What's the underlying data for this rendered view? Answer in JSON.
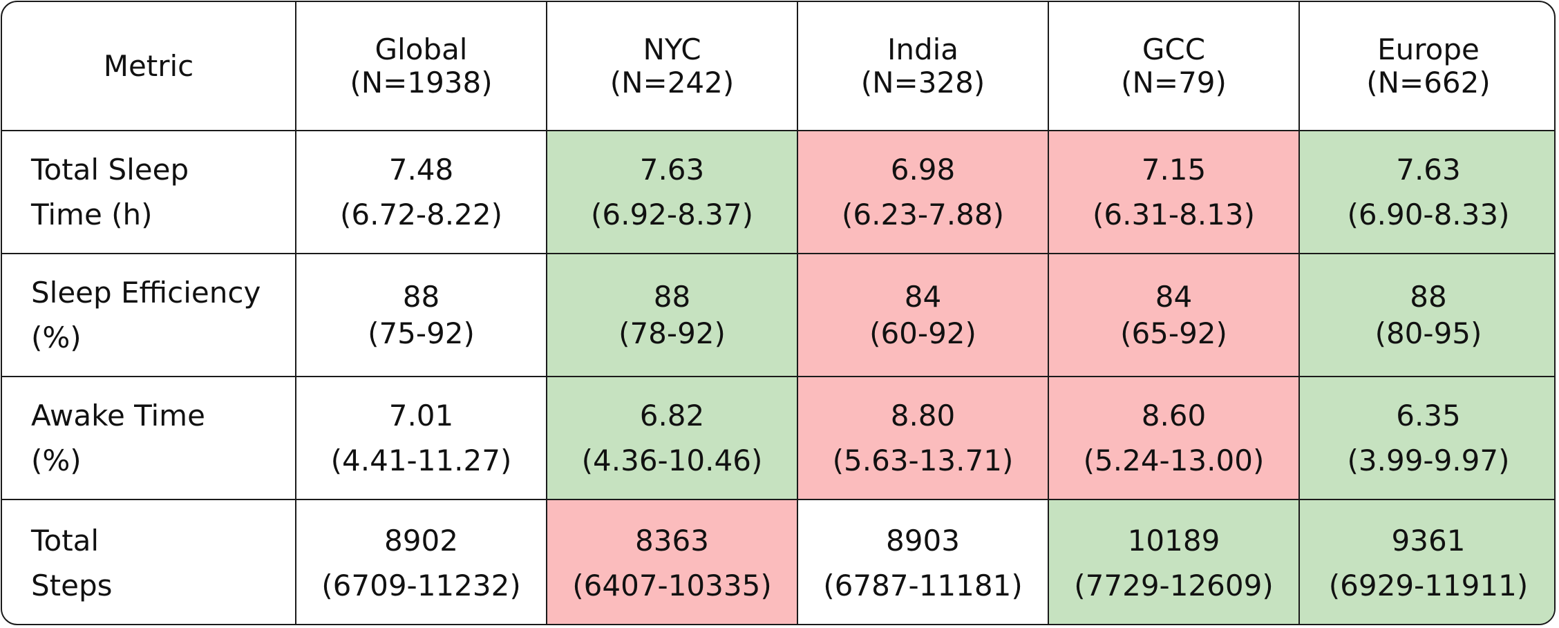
{
  "colors": {
    "better": "#c6e2c0",
    "worse": "#fbbcbd",
    "neutral": "#ffffff"
  },
  "header": {
    "metric": "Metric",
    "columns": [
      {
        "name": "Global",
        "n": "(N=1938)"
      },
      {
        "name": "NYC",
        "n": "(N=242)"
      },
      {
        "name": "India",
        "n": "(N=328)"
      },
      {
        "name": "GCC",
        "n": "(N=79)"
      },
      {
        "name": "Europe",
        "n": "(N=662)"
      }
    ]
  },
  "rows": [
    {
      "label": [
        "Total Sleep",
        "Time (h)"
      ],
      "cells": [
        {
          "value": "7.48",
          "range": "(6.72-8.22)",
          "status": "neutral"
        },
        {
          "value": "7.63",
          "range": "(6.92-8.37)",
          "status": "better"
        },
        {
          "value": "6.98",
          "range": "(6.23-7.88)",
          "status": "worse"
        },
        {
          "value": "7.15",
          "range": "(6.31-8.13)",
          "status": "worse"
        },
        {
          "value": "7.63",
          "range": "(6.90-8.33)",
          "status": "better"
        }
      ]
    },
    {
      "label": [
        "Sleep Efficiency",
        "(%)"
      ],
      "cells": [
        {
          "value": "88",
          "range": "(75-92)",
          "status": "neutral"
        },
        {
          "value": "88",
          "range": "(78-92)",
          "status": "better"
        },
        {
          "value": "84",
          "range": "(60-92)",
          "status": "worse"
        },
        {
          "value": "84",
          "range": "(65-92)",
          "status": "worse"
        },
        {
          "value": "88",
          "range": "(80-95)",
          "status": "better"
        }
      ]
    },
    {
      "label": [
        "Awake Time",
        "(%)"
      ],
      "cells": [
        {
          "value": "7.01",
          "range": "(4.41-11.27)",
          "status": "neutral"
        },
        {
          "value": "6.82",
          "range": "(4.36-10.46)",
          "status": "better"
        },
        {
          "value": "8.80",
          "range": "(5.63-13.71)",
          "status": "worse"
        },
        {
          "value": "8.60",
          "range": "(5.24-13.00)",
          "status": "worse"
        },
        {
          "value": "6.35",
          "range": "(3.99-9.97)",
          "status": "better"
        }
      ]
    },
    {
      "label": [
        "Total",
        "Steps"
      ],
      "cells": [
        {
          "value": "8902",
          "range": "(6709-11232)",
          "status": "neutral"
        },
        {
          "value": "8363",
          "range": "(6407-10335)",
          "status": "worse"
        },
        {
          "value": "8903",
          "range": "(6787-11181)",
          "status": "neutral"
        },
        {
          "value": "10189",
          "range": "(7729-12609)",
          "status": "better"
        },
        {
          "value": "9361",
          "range": "(6929-11911)",
          "status": "better"
        }
      ]
    }
  ]
}
